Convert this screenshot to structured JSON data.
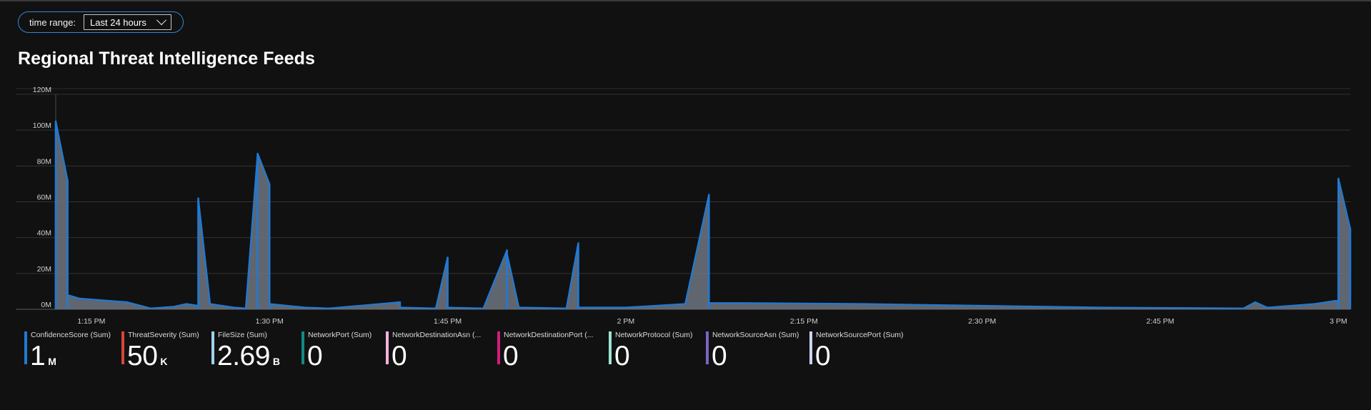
{
  "parameters": {
    "time_range_label": "time range:",
    "time_range_value": "Last 24 hours"
  },
  "chart_data": {
    "type": "area",
    "title": "Regional Threat Intelligence Feeds",
    "xlabel": "",
    "ylabel": "",
    "x_range": [
      "1:12 PM",
      "3:01 PM"
    ],
    "y_ticks": [
      "0M",
      "20M",
      "40M",
      "60M",
      "80M",
      "100M",
      "120M"
    ],
    "ylim": [
      0,
      120
    ],
    "x_tick_labels": [
      "1:15 PM",
      "1:30 PM",
      "1:45 PM",
      "2 PM",
      "2:15 PM",
      "2:30 PM",
      "2:45 PM",
      "3 PM"
    ],
    "grid": true,
    "series": [
      {
        "name": "ConfidenceScore (Sum)",
        "color": "#1f7ad6",
        "points": [
          [
            "1:12 PM",
            0
          ],
          [
            "1:12 PM",
            60
          ],
          [
            "1:12 PM",
            105
          ],
          [
            "1:13 PM",
            72
          ],
          [
            "1:13 PM",
            8
          ],
          [
            "1:14 PM",
            6
          ],
          [
            "1:18 PM",
            4
          ],
          [
            "1:20 PM",
            0.5
          ],
          [
            "1:22 PM",
            1.5
          ],
          [
            "1:23 PM",
            3
          ],
          [
            "1:24 PM",
            2
          ],
          [
            "1:24 PM",
            62
          ],
          [
            "1:25 PM",
            3
          ],
          [
            "1:27 PM",
            1
          ],
          [
            "1:28 PM",
            0.5
          ],
          [
            "1:29 PM",
            87
          ],
          [
            "1:30 PM",
            70
          ],
          [
            "1:30 PM",
            3
          ],
          [
            "1:33 PM",
            1
          ],
          [
            "1:35 PM",
            0.5
          ],
          [
            "1:41 PM",
            4
          ],
          [
            "1:41 PM",
            1
          ],
          [
            "1:44 PM",
            0.5
          ],
          [
            "1:45 PM",
            29
          ],
          [
            "1:45 PM",
            1
          ],
          [
            "1:48 PM",
            0.5
          ],
          [
            "1:50 PM",
            33
          ],
          [
            "1:50 PM",
            31
          ],
          [
            "1:51 PM",
            1
          ],
          [
            "1:55 PM",
            0.5
          ],
          [
            "1:56 PM",
            37
          ],
          [
            "1:56 PM",
            35
          ],
          [
            "1:56 PM",
            1
          ],
          [
            "2:00 PM",
            1
          ],
          [
            "2:05 PM",
            3
          ],
          [
            "2:07 PM",
            64
          ],
          [
            "2:07 PM",
            57
          ],
          [
            "2:07 PM",
            3.5
          ],
          [
            "2:10 PM",
            3.5
          ],
          [
            "2:20 PM",
            3
          ],
          [
            "2:30 PM",
            2
          ],
          [
            "2:40 PM",
            1
          ],
          [
            "2:52 PM",
            0.5
          ],
          [
            "2:53 PM",
            4
          ],
          [
            "2:54 PM",
            1
          ],
          [
            "2:58 PM",
            3
          ],
          [
            "3:00 PM",
            5
          ],
          [
            "3:00 PM",
            73
          ],
          [
            "3:01 PM",
            45
          ],
          [
            "3:01 PM",
            6
          ]
        ]
      }
    ],
    "legend": [
      {
        "name": "ConfidenceScore (Sum)",
        "value": "1",
        "unit": "M",
        "color": "#1f7ad6"
      },
      {
        "name": "ThreatSeverity (Sum)",
        "value": "50",
        "unit": "K",
        "color": "#d9453a"
      },
      {
        "name": "FileSize (Sum)",
        "value": "2.69",
        "unit": "B",
        "color": "#9fd2ee"
      },
      {
        "name": "NetworkPort (Sum)",
        "value": "0",
        "unit": "",
        "color": "#0f8a86"
      },
      {
        "name": "NetworkDestinationAsn (...",
        "value": "0",
        "unit": "",
        "color": "#f4b3dc"
      },
      {
        "name": "NetworkDestinationPort (...",
        "value": "0",
        "unit": "",
        "color": "#d41c7c"
      },
      {
        "name": "NetworkProtocol (Sum)",
        "value": "0",
        "unit": "",
        "color": "#9fe2d2"
      },
      {
        "name": "NetworkSourceAsn (Sum)",
        "value": "0",
        "unit": "",
        "color": "#7b63c7"
      },
      {
        "name": "NetworkSourcePort (Sum)",
        "value": "0",
        "unit": "",
        "color": "#c9d3f5"
      }
    ],
    "legend_placement": "bottom"
  }
}
